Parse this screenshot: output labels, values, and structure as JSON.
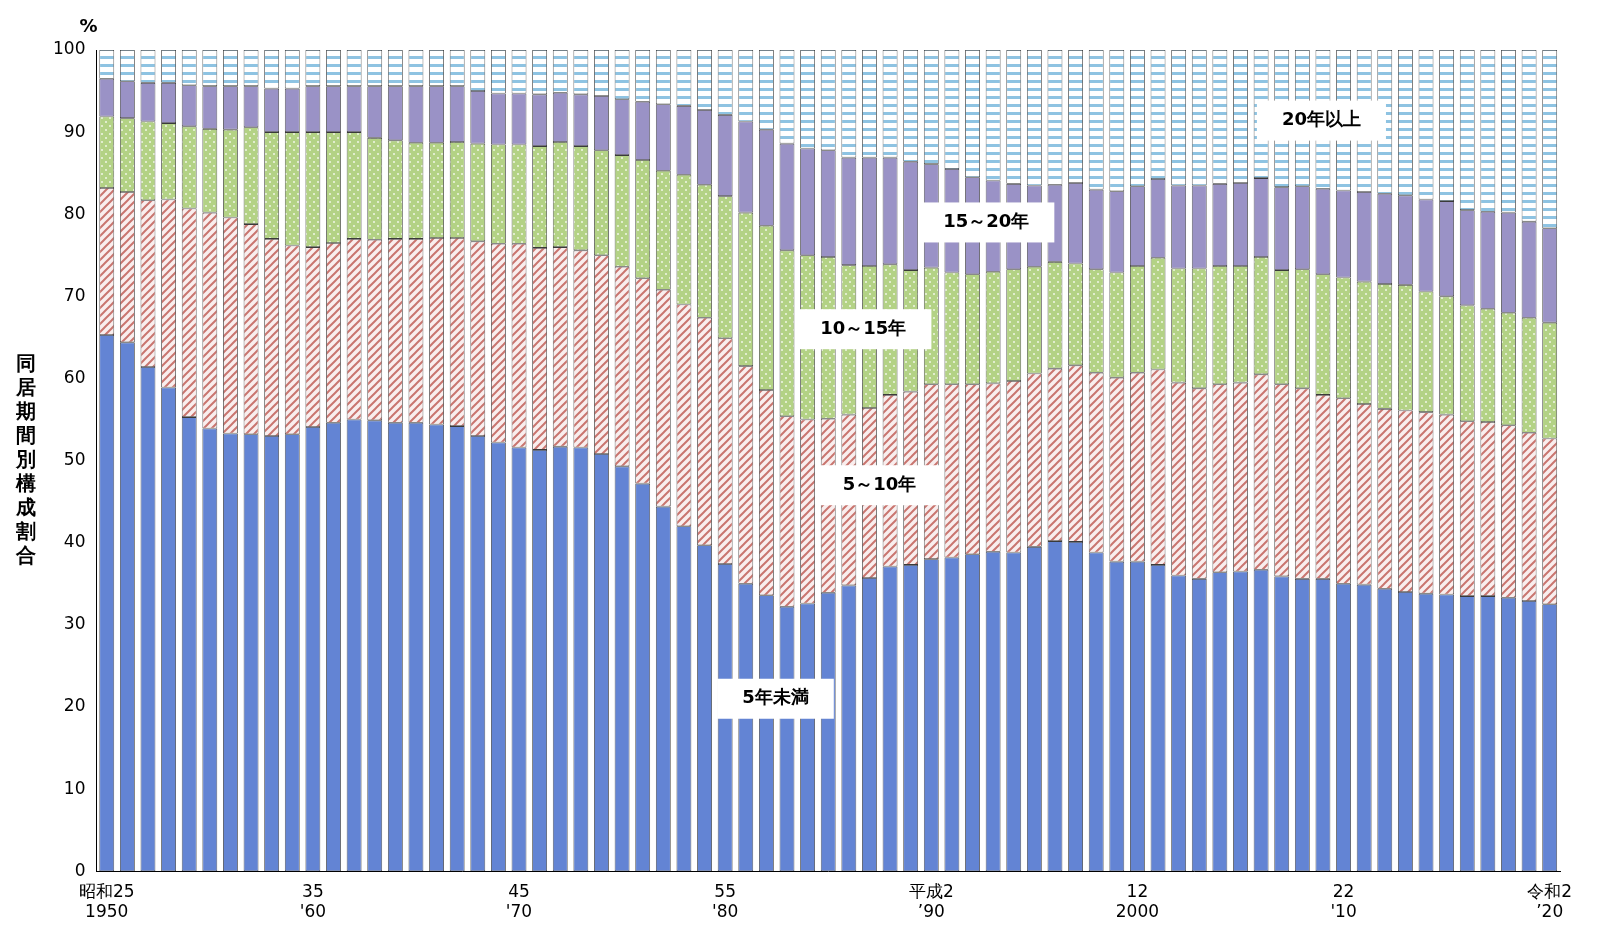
{
  "chart_data": {
    "type": "bar",
    "stacked": true,
    "ylabel": "同居期間別構成割合",
    "yunit": "%",
    "categories": [
      "昭和25\n1950",
      null,
      null,
      null,
      null,
      null,
      null,
      null,
      null,
      null,
      "35\n'60",
      null,
      null,
      null,
      null,
      null,
      null,
      null,
      null,
      null,
      "45\n'70",
      null,
      null,
      null,
      null,
      null,
      null,
      null,
      null,
      null,
      "55\n'80",
      null,
      null,
      null,
      null,
      null,
      null,
      null,
      null,
      null,
      "平成2\n’90",
      null,
      null,
      null,
      null,
      null,
      null,
      null,
      null,
      null,
      "12\n2000",
      null,
      null,
      null,
      null,
      null,
      null,
      null,
      null,
      null,
      "22\n'10",
      null,
      null,
      null,
      null,
      null,
      null,
      null,
      null,
      null,
      "令和2\n’20"
    ],
    "series": [
      {
        "name": "5年未満",
        "color": "#6384d4",
        "values": [
          65.3,
          64.4,
          61.4,
          58.9,
          55.3,
          53.9,
          53.3,
          53.2,
          53.0,
          53.2,
          54.1,
          54.6,
          55.0,
          54.9,
          54.6,
          54.6,
          54.4,
          54.2,
          53.0,
          52.2,
          51.6,
          51.3,
          51.7,
          51.6,
          50.8,
          49.3,
          47.2,
          44.4,
          42.0,
          39.7,
          37.4,
          35.0,
          33.6,
          32.2,
          32.6,
          33.9,
          34.8,
          35.7,
          37.1,
          37.3,
          38.0,
          38.2,
          38.6,
          38.9,
          38.8,
          39.5,
          40.2,
          40.1,
          38.8,
          37.7,
          37.7,
          37.3,
          36.0,
          35.6,
          36.4,
          36.5,
          36.7,
          35.9,
          35.6,
          35.6,
          35.0,
          34.9,
          34.4,
          34.0,
          33.8,
          33.7,
          33.5,
          33.5,
          33.3,
          32.9,
          32.5
        ]
      },
      {
        "name": "5～10年",
        "color": "#c9756f",
        "values": [
          17.9,
          18.3,
          20.3,
          22.9,
          25.4,
          26.3,
          26.3,
          25.6,
          24.0,
          23.0,
          21.9,
          21.9,
          22.0,
          22.0,
          22.4,
          22.4,
          22.7,
          22.9,
          23.7,
          24.2,
          24.8,
          24.6,
          24.3,
          24.0,
          24.2,
          24.3,
          25.0,
          26.4,
          27.0,
          27.7,
          27.5,
          26.5,
          25.0,
          23.2,
          22.4,
          21.2,
          20.8,
          20.7,
          20.9,
          21.1,
          21.3,
          21.1,
          20.7,
          20.5,
          20.9,
          21.1,
          21.0,
          21.5,
          21.9,
          22.4,
          23.0,
          23.8,
          23.5,
          23.2,
          22.9,
          23.0,
          23.8,
          23.4,
          23.2,
          22.4,
          22.6,
          22.0,
          21.9,
          22.1,
          22.1,
          21.9,
          21.3,
          21.2,
          21.0,
          20.5,
          20.2
        ]
      },
      {
        "name": "10～15年",
        "color": "#b3d285",
        "values": [
          8.7,
          9.0,
          9.6,
          9.3,
          10.0,
          10.2,
          10.7,
          11.8,
          13.0,
          13.8,
          14.0,
          13.5,
          13.0,
          12.4,
          12.0,
          11.7,
          11.6,
          11.7,
          11.9,
          12.1,
          12.1,
          12.4,
          12.8,
          12.7,
          12.8,
          13.6,
          14.4,
          14.5,
          15.8,
          16.2,
          17.3,
          18.7,
          20.0,
          20.2,
          20.0,
          19.7,
          18.2,
          17.3,
          15.9,
          14.8,
          14.2,
          13.6,
          13.4,
          13.6,
          13.6,
          13.0,
          13.0,
          12.4,
          12.6,
          12.8,
          13.0,
          13.6,
          13.9,
          14.6,
          14.4,
          14.2,
          14.3,
          13.9,
          14.5,
          14.7,
          14.7,
          14.9,
          15.2,
          15.3,
          14.7,
          14.4,
          14.1,
          13.8,
          13.7,
          14.0,
          14.1
        ]
      },
      {
        "name": "15～20年",
        "color": "#9a92c6",
        "values": [
          4.6,
          4.5,
          4.7,
          4.9,
          5.0,
          5.2,
          5.3,
          5.0,
          5.3,
          5.3,
          5.6,
          5.6,
          5.6,
          6.3,
          6.6,
          6.9,
          6.9,
          6.8,
          6.4,
          6.2,
          6.2,
          6.3,
          6.0,
          6.3,
          6.6,
          6.8,
          7.1,
          8.1,
          8.4,
          9.1,
          9.9,
          11.1,
          11.7,
          13.0,
          13.0,
          13.0,
          13.1,
          13.2,
          13.0,
          13.2,
          12.6,
          12.6,
          11.8,
          11.1,
          10.4,
          9.9,
          9.4,
          9.8,
          9.7,
          9.9,
          9.7,
          9.6,
          10.1,
          10.1,
          10.0,
          10.1,
          9.6,
          10.1,
          10.1,
          10.4,
          10.6,
          10.9,
          11.0,
          10.9,
          11.2,
          11.6,
          11.6,
          11.8,
          12.2,
          11.7,
          11.5
        ]
      },
      {
        "name": "20年以上",
        "color": "#8ec3e2",
        "values": [
          3.5,
          3.8,
          4.0,
          4.0,
          4.3,
          4.4,
          4.4,
          4.4,
          4.7,
          4.7,
          4.4,
          4.4,
          4.4,
          4.4,
          4.4,
          4.4,
          4.4,
          4.4,
          5.0,
          5.3,
          5.3,
          5.4,
          5.2,
          5.4,
          5.6,
          6.0,
          6.3,
          6.6,
          6.8,
          7.3,
          7.9,
          8.7,
          9.7,
          11.4,
          12.0,
          12.2,
          13.1,
          13.1,
          13.1,
          13.6,
          13.9,
          14.5,
          15.5,
          15.9,
          16.3,
          16.5,
          16.4,
          16.2,
          17.0,
          17.2,
          16.6,
          15.7,
          16.5,
          16.5,
          16.3,
          16.2,
          15.6,
          16.7,
          16.6,
          16.9,
          17.1,
          17.3,
          17.5,
          17.7,
          18.2,
          18.4,
          19.5,
          19.7,
          19.8,
          20.9,
          21.7
        ]
      }
    ],
    "ylim": [
      0,
      100
    ],
    "yticks": [
      0,
      10,
      20,
      30,
      40,
      50,
      60,
      70,
      80,
      90,
      100
    ],
    "grid": false,
    "legend": "inside"
  }
}
